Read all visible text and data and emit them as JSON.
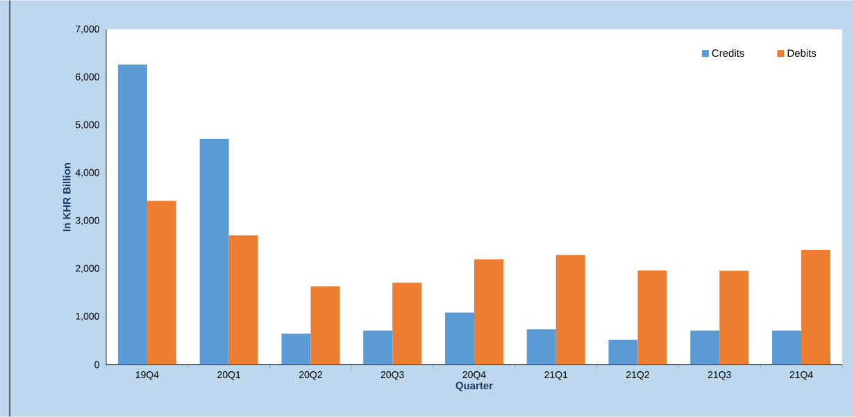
{
  "chart_data": {
    "type": "bar",
    "xlabel": "Quarter",
    "ylabel": "In KHR Billion",
    "categories": [
      "19Q4",
      "20Q1",
      "20Q2",
      "20Q3",
      "20Q4",
      "21Q1",
      "21Q2",
      "21Q3",
      "21Q4"
    ],
    "series": [
      {
        "name": "Credits",
        "color": "#5b9bd5",
        "values": [
          6270,
          4720,
          650,
          710,
          1090,
          740,
          520,
          710,
          710
        ]
      },
      {
        "name": "Debits",
        "color": "#ed7d31",
        "values": [
          3420,
          2700,
          1640,
          1710,
          2200,
          2290,
          1970,
          1960,
          2400
        ]
      }
    ],
    "ylim": [
      0,
      7000
    ],
    "yticks": [
      0,
      {
        "value": 1000,
        "label": "1,000"
      },
      {
        "value": 2000,
        "label": "2,000"
      },
      {
        "value": 3000,
        "label": "3,000"
      },
      {
        "value": 4000,
        "label": "4,000"
      },
      {
        "value": 5000,
        "label": "5,000"
      },
      {
        "value": 6000,
        "label": "6,000"
      },
      {
        "value": 7000,
        "label": "7,000"
      }
    ],
    "grid": false,
    "legend": "top right"
  }
}
